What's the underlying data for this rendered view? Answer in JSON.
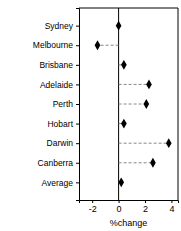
{
  "chart_data": {
    "type": "dot",
    "orientation": "horizontal",
    "categories": [
      "Sydney",
      "Melbourne",
      "Brisbane",
      "Adelaide",
      "Perth",
      "Hobart",
      "Darwin",
      "Canberra",
      "Average"
    ],
    "values": [
      0.0,
      -1.6,
      0.4,
      2.3,
      2.1,
      0.4,
      3.8,
      2.6,
      0.2
    ],
    "color": "#000000",
    "marker": "diamond",
    "line_style": "dashed",
    "xlim": [
      -3,
      4.5
    ],
    "xticks": [
      -2,
      0,
      2,
      4
    ],
    "x_label": "%change",
    "grid": false
  }
}
